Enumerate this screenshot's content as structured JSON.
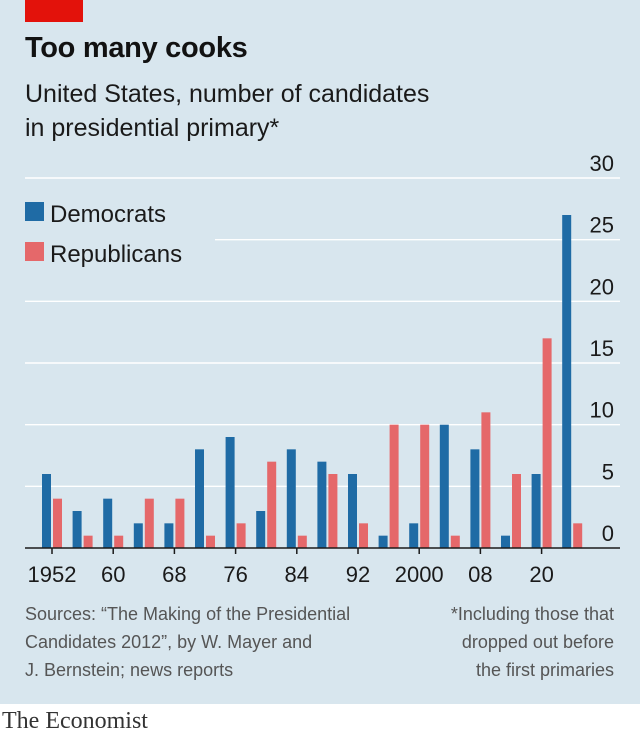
{
  "header": {
    "title": "Too many cooks",
    "subtitle_line1": "United States, number of candidates",
    "subtitle_line2": "in presidential primary*"
  },
  "chart_data": {
    "type": "bar",
    "title": "Too many cooks",
    "subtitle": "United States, number of candidates in presidential primary*",
    "categories": [
      "1952",
      "1956",
      "1960",
      "1964",
      "1968",
      "1972",
      "1976",
      "1980",
      "1984",
      "1988",
      "1992",
      "1996",
      "2000",
      "2004",
      "2008",
      "2012",
      "2016",
      "2020"
    ],
    "x_tick_labels": [
      "1952",
      "60",
      "68",
      "76",
      "84",
      "92",
      "2000",
      "08",
      "20"
    ],
    "series": [
      {
        "name": "Democrats",
        "color": "#1f6ba5",
        "values": [
          6,
          3,
          4,
          2,
          2,
          8,
          9,
          3,
          8,
          7,
          6,
          1,
          2,
          10,
          8,
          1,
          6,
          27
        ]
      },
      {
        "name": "Republicans",
        "color": "#e5686a",
        "values": [
          4,
          1,
          1,
          4,
          4,
          1,
          2,
          7,
          1,
          6,
          2,
          10,
          10,
          1,
          11,
          6,
          17,
          2
        ]
      }
    ],
    "ylim": [
      0,
      30
    ],
    "y_ticks": [
      "0",
      "5",
      "10",
      "15",
      "20",
      "25",
      "30"
    ],
    "grid": true,
    "legend_position": "top-left",
    "xlabel": "",
    "ylabel": ""
  },
  "footer": {
    "source_lines": [
      "Sources: “The Making of the Presidential",
      "Candidates 2012”, by W. Mayer and",
      "J. Bernstein; news reports"
    ],
    "note_lines": [
      "*Including those that",
      "dropped out before",
      "the first primaries"
    ],
    "brand": "The Economist"
  }
}
